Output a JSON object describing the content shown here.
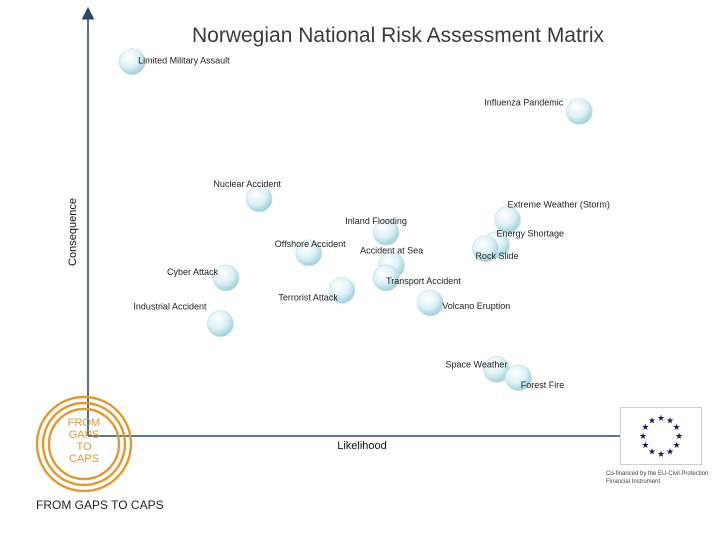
{
  "title": "Norwegian National Risk Assessment Matrix",
  "chart_data": {
    "type": "scatter",
    "title": "Norwegian National Risk Assessment Matrix",
    "xlabel": "Likelihood",
    "ylabel": "Consequence",
    "xlim": [
      0,
      100
    ],
    "ylim": [
      0,
      100
    ],
    "grid": false,
    "points": [
      {
        "label": "Limited Military Assault",
        "x": 8,
        "y": 90
      },
      {
        "label": "Influenza Pandemic",
        "x": 89,
        "y": 78
      },
      {
        "label": "Nuclear Accident",
        "x": 31,
        "y": 57
      },
      {
        "label": "Extreme Weather (Storm)",
        "x": 76,
        "y": 52
      },
      {
        "label": "Inland Flooding",
        "x": 54,
        "y": 49
      },
      {
        "label": "Energy Shortage",
        "x": 74,
        "y": 46
      },
      {
        "label": "Offshore Accident",
        "x": 40,
        "y": 44
      },
      {
        "label": "Accident at Sea",
        "x": 55,
        "y": 41
      },
      {
        "label": "Rock Slide",
        "x": 72,
        "y": 45
      },
      {
        "label": "Cyber Attack",
        "x": 25,
        "y": 38
      },
      {
        "label": "Terrorist Attack",
        "x": 46,
        "y": 35
      },
      {
        "label": "Transport Accident",
        "x": 54,
        "y": 38
      },
      {
        "label": "Volcano Eruption",
        "x": 62,
        "y": 32
      },
      {
        "label": "Industrial Accident",
        "x": 24,
        "y": 27
      },
      {
        "label": "Space Weather",
        "x": 74,
        "y": 16
      },
      {
        "label": "Forest Fire",
        "x": 78,
        "y": 14
      }
    ]
  },
  "logo": {
    "lines": [
      "FROM",
      "GAPS",
      "TO",
      "CAPS"
    ],
    "caption": "FROM GAPS TO CAPS",
    "color": "#e09a35"
  },
  "eu": {
    "caption": "Co-financed by the EU-Civil Protection Financial Instrument",
    "star_color": "#1a1a5a"
  },
  "colors": {
    "axis": "#2a4a6a",
    "bubble_center": "#ffffff",
    "bubble_edge": "#a9d8e2"
  }
}
